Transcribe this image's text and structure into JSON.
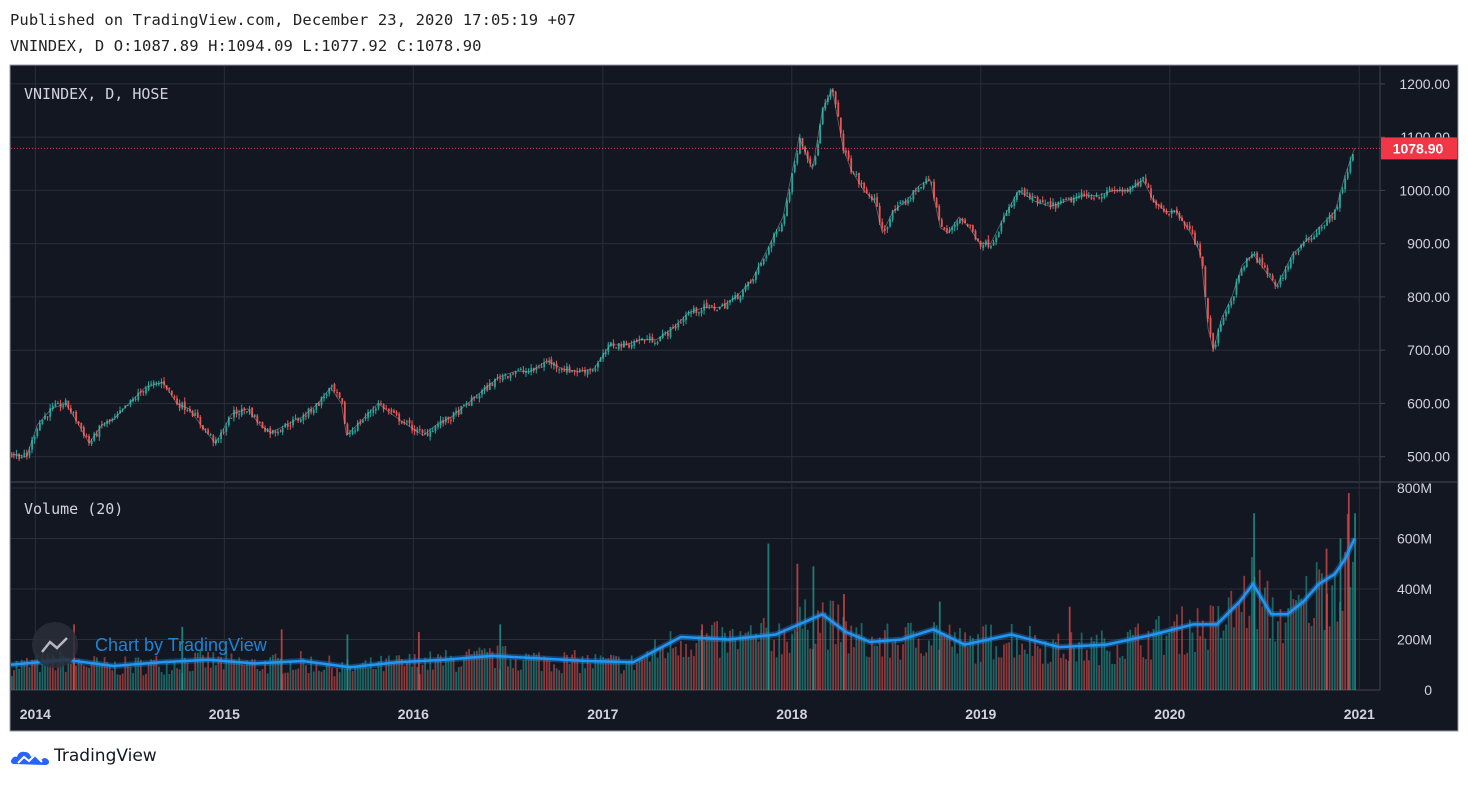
{
  "header": {
    "published": "Published on TradingView.com, December 23, 2020 17:05:19 +07",
    "ohlc": "VNINDEX, D O:1087.89 H:1094.09 L:1077.92 C:1078.90"
  },
  "footer": {
    "brand": "TradingView"
  },
  "watermark": "Chart by TradingView",
  "colors": {
    "background": "#131722",
    "grid": "#2a2e39",
    "up": "#26a69a",
    "down": "#ef5350",
    "volume_ma": "#2196f3",
    "price_line": "#f23645",
    "axis_text": "#d1d4dc"
  },
  "chart_data": [
    {
      "type": "candlestick",
      "title": "VNINDEX, D, HOSE",
      "last_price_label": "1078.90",
      "ylim": [
        460,
        1228
      ],
      "xlim": [
        "2013-11-15",
        "2021-02-10"
      ],
      "x_ticks": [
        "2014",
        "2015",
        "2016",
        "2017",
        "2018",
        "2019",
        "2020",
        "2021"
      ],
      "y_ticks": [
        "500.00",
        "600.00",
        "700.00",
        "800.00",
        "900.00",
        "1000.00",
        "1100.00",
        "1200.00"
      ],
      "close_series": {
        "dates": [
          "2013-11-15",
          "2013-12-15",
          "2014-01-05",
          "2014-02-01",
          "2014-03-01",
          "2014-03-20",
          "2014-04-15",
          "2014-05-10",
          "2014-06-01",
          "2014-07-01",
          "2014-08-01",
          "2014-09-05",
          "2014-10-01",
          "2014-10-25",
          "2014-11-20",
          "2014-12-15",
          "2015-01-15",
          "2015-02-15",
          "2015-03-10",
          "2015-04-01",
          "2015-05-01",
          "2015-06-01",
          "2015-07-01",
          "2015-07-25",
          "2015-08-15",
          "2015-08-25",
          "2015-09-20",
          "2015-10-25",
          "2015-11-20",
          "2015-12-20",
          "2016-01-20",
          "2016-02-15",
          "2016-03-15",
          "2016-04-15",
          "2016-05-15",
          "2016-06-15",
          "2016-07-15",
          "2016-08-15",
          "2016-09-15",
          "2016-10-15",
          "2016-11-15",
          "2016-12-15",
          "2017-01-15",
          "2017-02-15",
          "2017-03-15",
          "2017-04-15",
          "2017-05-15",
          "2017-06-15",
          "2017-07-15",
          "2017-08-15",
          "2017-09-15",
          "2017-10-15",
          "2017-11-15",
          "2017-12-15",
          "2018-01-15",
          "2018-02-10",
          "2018-03-01",
          "2018-03-20",
          "2018-04-10",
          "2018-04-25",
          "2018-05-20",
          "2018-06-10",
          "2018-06-25",
          "2018-07-15",
          "2018-08-10",
          "2018-09-05",
          "2018-09-25",
          "2018-10-15",
          "2018-10-30",
          "2018-11-20",
          "2018-12-10",
          "2018-12-30",
          "2019-01-20",
          "2019-02-15",
          "2019-03-15",
          "2019-04-15",
          "2019-05-15",
          "2019-06-15",
          "2019-07-15",
          "2019-08-15",
          "2019-09-15",
          "2019-10-15",
          "2019-11-10",
          "2019-12-01",
          "2019-12-25",
          "2020-01-15",
          "2020-02-10",
          "2020-03-01",
          "2020-03-15",
          "2020-03-25",
          "2020-04-10",
          "2020-04-30",
          "2020-05-20",
          "2020-06-10",
          "2020-06-25",
          "2020-07-10",
          "2020-07-25",
          "2020-08-10",
          "2020-08-25",
          "2020-09-15",
          "2020-10-05",
          "2020-10-25",
          "2020-11-15",
          "2020-12-05",
          "2020-12-23"
        ],
        "values": [
          505,
          500,
          560,
          590,
          600,
          570,
          525,
          560,
          570,
          600,
          630,
          640,
          600,
          590,
          555,
          525,
          580,
          590,
          560,
          545,
          560,
          575,
          600,
          630,
          600,
          540,
          565,
          600,
          580,
          560,
          540,
          560,
          575,
          600,
          625,
          650,
          660,
          660,
          680,
          665,
          660,
          665,
          710,
          710,
          720,
          720,
          740,
          770,
          780,
          780,
          800,
          830,
          890,
          950,
          1100,
          1040,
          1150,
          1190,
          1080,
          1040,
          1000,
          980,
          920,
          960,
          980,
          1010,
          1020,
          930,
          920,
          950,
          930,
          900,
          900,
          950,
          1000,
          980,
          970,
          980,
          990,
          990,
          1000,
          1000,
          1020,
          980,
          960,
          960,
          920,
          880,
          740,
          700,
          760,
          800,
          860,
          880,
          860,
          840,
          820,
          850,
          880,
          900,
          920,
          940,
          960,
          1030,
          1078.9
        ]
      }
    },
    {
      "type": "volume",
      "title": "Volume (20)",
      "ylim": [
        0,
        820
      ],
      "unit": "M",
      "y_ticks": [
        "0",
        "200M",
        "400M",
        "600M",
        "800M"
      ],
      "ma20_series": {
        "dates": [
          "2013-11-15",
          "2014-03-01",
          "2014-06-01",
          "2014-09-01",
          "2014-12-01",
          "2015-03-01",
          "2015-06-01",
          "2015-09-01",
          "2015-12-01",
          "2016-03-01",
          "2016-06-01",
          "2016-09-01",
          "2016-12-01",
          "2017-03-01",
          "2017-06-01",
          "2017-09-01",
          "2017-12-01",
          "2018-01-15",
          "2018-03-01",
          "2018-04-15",
          "2018-06-01",
          "2018-08-01",
          "2018-10-01",
          "2018-12-01",
          "2019-03-01",
          "2019-06-01",
          "2019-09-01",
          "2019-12-01",
          "2020-02-15",
          "2020-04-01",
          "2020-05-15",
          "2020-06-10",
          "2020-07-15",
          "2020-08-15",
          "2020-09-15",
          "2020-10-15",
          "2020-11-15",
          "2020-12-05",
          "2020-12-23"
        ],
        "values": [
          100,
          120,
          95,
          110,
          120,
          105,
          115,
          90,
          110,
          120,
          135,
          125,
          115,
          110,
          210,
          200,
          220,
          260,
          300,
          230,
          190,
          200,
          240,
          180,
          220,
          170,
          180,
          220,
          260,
          260,
          350,
          420,
          300,
          300,
          350,
          420,
          460,
          520,
          600
        ]
      },
      "spikes": {
        "dates": [
          "2014-03-15",
          "2014-10-10",
          "2015-04-20",
          "2015-08-25",
          "2016-01-10",
          "2016-06-15",
          "2017-07-10",
          "2017-11-15",
          "2018-01-10",
          "2018-02-10",
          "2018-04-10",
          "2018-10-12",
          "2019-06-20",
          "2020-06-10",
          "2020-10-28",
          "2020-11-24",
          "2020-12-10",
          "2020-12-22"
        ],
        "values": [
          260,
          250,
          240,
          220,
          230,
          260,
          260,
          580,
          500,
          490,
          380,
          350,
          330,
          700,
          560,
          600,
          780,
          700
        ]
      }
    }
  ]
}
